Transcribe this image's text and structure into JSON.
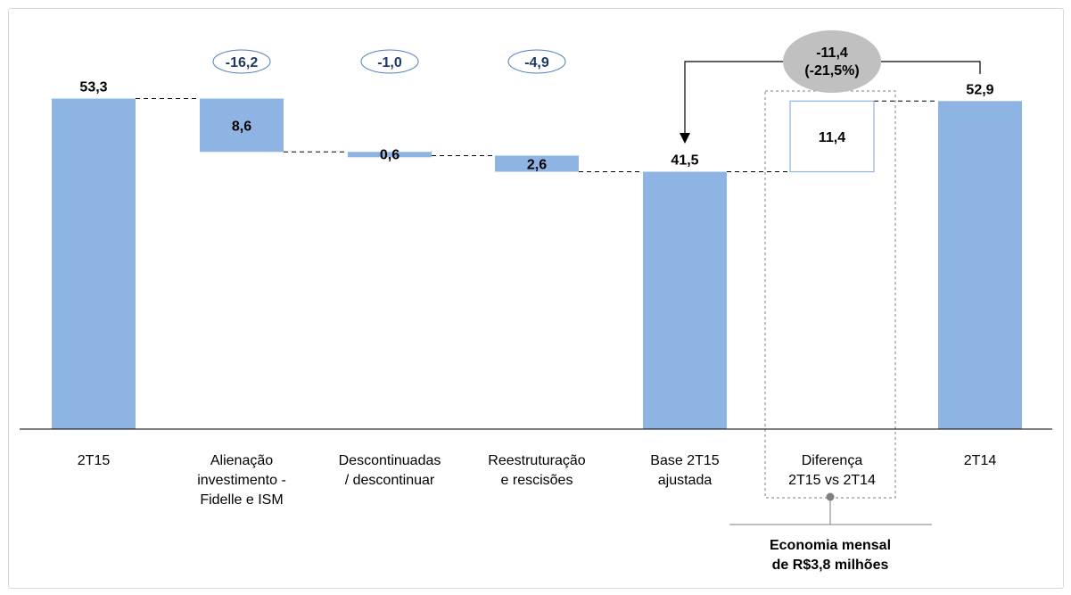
{
  "chart_data": {
    "type": "bar",
    "subtype": "waterfall",
    "categories": [
      [
        "2T15"
      ],
      [
        "Alienação",
        "investimento -",
        "Fidelle e ISM"
      ],
      [
        "Descontinuadas",
        "/ descontinuar"
      ],
      [
        "Reestruturação",
        "e rescisões"
      ],
      [
        "Base 2T15",
        "ajustada"
      ],
      [
        "Diferença",
        "2T15 vs 2T14"
      ],
      [
        "2T14"
      ]
    ],
    "bars": [
      {
        "kind": "total",
        "value": 53.3,
        "label": "53,3"
      },
      {
        "kind": "decrease",
        "value": 8.6,
        "label": "8,6",
        "change_label": "-16,2"
      },
      {
        "kind": "decrease",
        "value": 0.6,
        "label": "0,6",
        "change_label": "-1,0"
      },
      {
        "kind": "decrease",
        "value": 2.6,
        "label": "2,6",
        "change_label": "-4,9"
      },
      {
        "kind": "total",
        "value": 41.5,
        "label": "41,5"
      },
      {
        "kind": "difference",
        "value": 11.4,
        "label": "11,4"
      },
      {
        "kind": "total",
        "value": 52.9,
        "label": "52,9"
      }
    ],
    "difference_callout": [
      "-11,4",
      "(-21,5%)"
    ],
    "note": [
      "Economia mensal",
      "de R$3,8 milhões"
    ],
    "ylim": [
      0,
      60
    ],
    "grid": false,
    "colors": {
      "bar": "#8eb4e3",
      "bar_edge": "#8eb4e3",
      "difference_edge": "#8eb4e3",
      "change_pill_border": "#4a7ebb",
      "change_text": "#1f3864",
      "callout_fill": "#c0c0c0",
      "axis": "#000000",
      "connector": "#000000"
    }
  }
}
